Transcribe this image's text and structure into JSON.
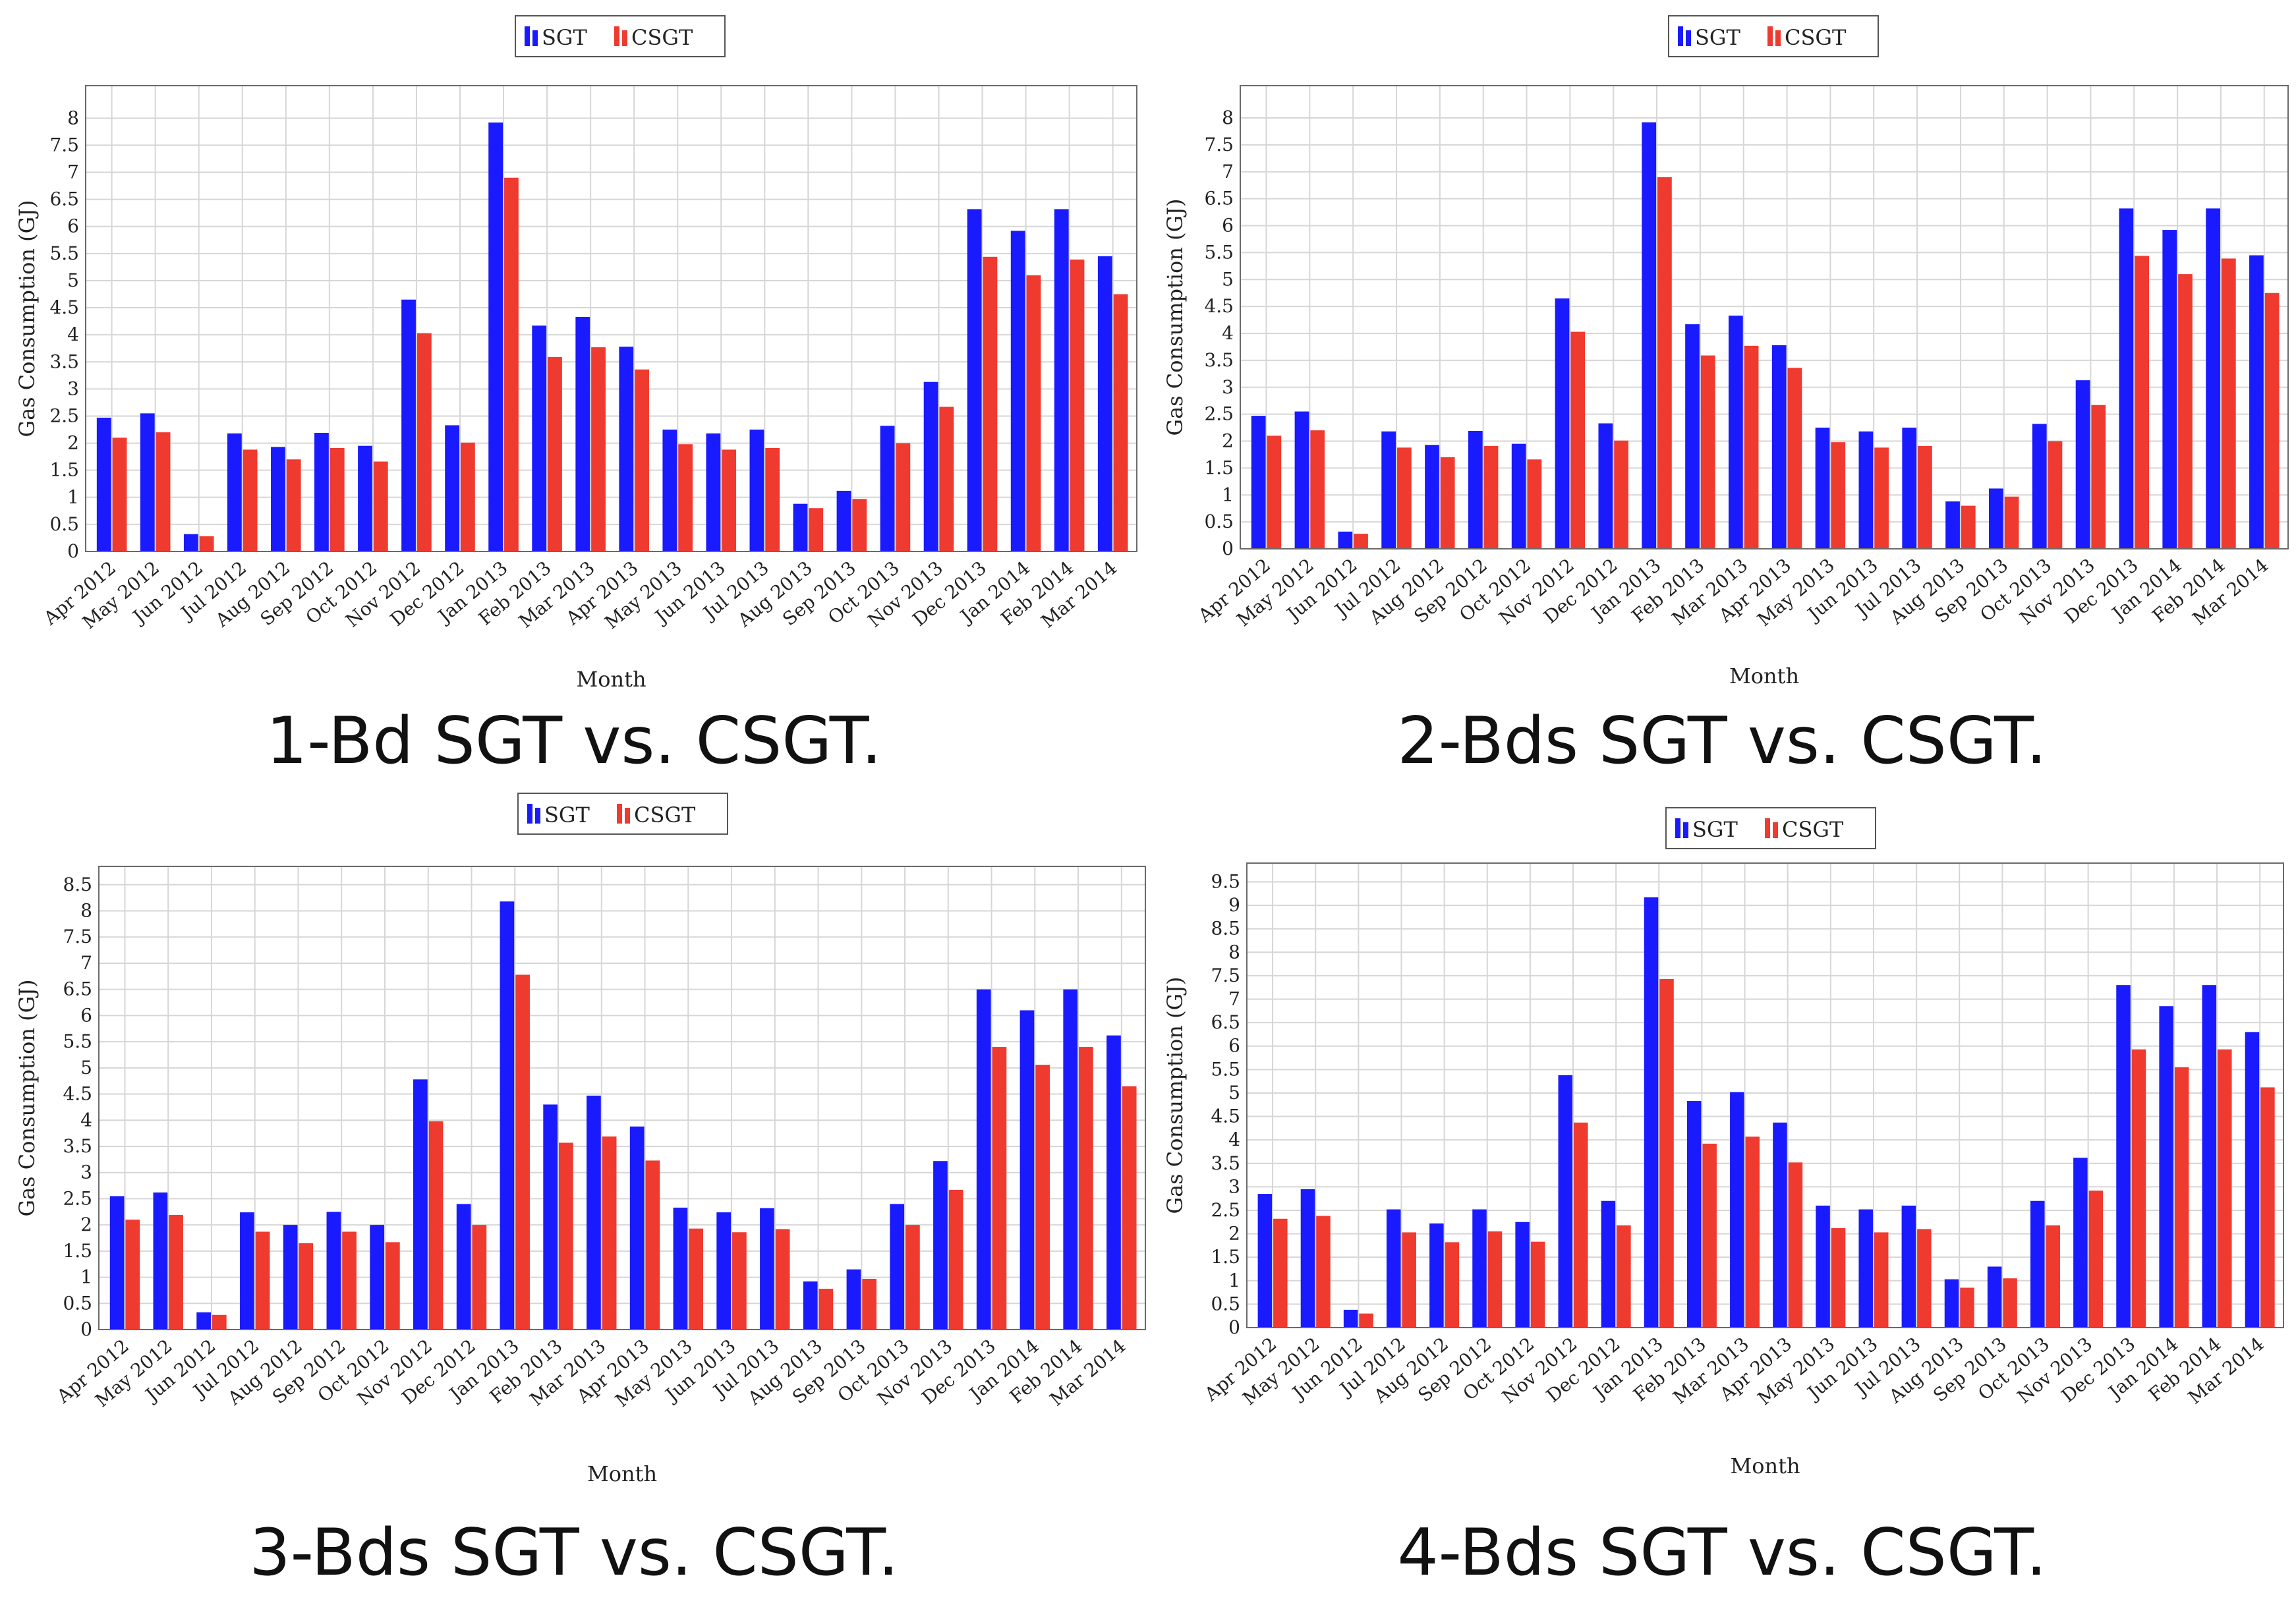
{
  "colors": {
    "sgt": "#1a1aff",
    "csgt": "#ef3a2f",
    "grid": "#d6d6d6",
    "axis": "#555555"
  },
  "legend": {
    "sgt": "SGT",
    "csgt": "CSGT"
  },
  "chart_data": [
    {
      "type": "bar",
      "caption": "1-Bd SGT vs. CSGT.",
      "xlabel": "Month",
      "ylabel": "Gas Consumption (GJ)",
      "ylim": [
        0,
        8.6
      ],
      "yticks": [
        "0",
        "0.5",
        "1",
        "1.5",
        "2",
        "2.5",
        "3",
        "3.5",
        "4",
        "4.5",
        "5",
        "5.5",
        "6",
        "6.5",
        "7",
        "7.5",
        "8"
      ],
      "categories": [
        "Apr 2012",
        "May 2012",
        "Jun 2012",
        "Jul 2012",
        "Aug 2012",
        "Sep 2012",
        "Oct 2012",
        "Nov 2012",
        "Dec 2012",
        "Jan 2013",
        "Feb 2013",
        "Mar 2013",
        "Apr 2013",
        "May 2013",
        "Jun 2013",
        "Jul 2013",
        "Aug 2013",
        "Sep 2013",
        "Oct 2013",
        "Nov 2013",
        "Dec 2013",
        "Jan 2014",
        "Feb 2014",
        "Mar 2014"
      ],
      "series": [
        {
          "name": "SGT",
          "values": [
            2.47,
            2.55,
            0.32,
            2.18,
            1.93,
            2.19,
            1.95,
            4.65,
            2.33,
            7.92,
            4.17,
            4.33,
            3.78,
            2.25,
            2.18,
            2.25,
            0.88,
            1.12,
            2.32,
            3.13,
            6.32,
            5.92,
            6.32,
            5.45
          ]
        },
        {
          "name": "CSGT",
          "values": [
            2.1,
            2.2,
            0.28,
            1.88,
            1.7,
            1.91,
            1.66,
            4.03,
            2.01,
            6.9,
            3.59,
            3.77,
            3.36,
            1.98,
            1.88,
            1.91,
            0.8,
            0.97,
            2.0,
            2.67,
            5.44,
            5.1,
            5.39,
            4.75
          ]
        }
      ]
    },
    {
      "type": "bar",
      "caption": "2-Bds SGT vs. CSGT.",
      "xlabel": "Month",
      "ylabel": "Gas Consumption (GJ)",
      "ylim": [
        0,
        8.6
      ],
      "yticks": [
        "0",
        "0.5",
        "1",
        "1.5",
        "2",
        "2.5",
        "3",
        "3.5",
        "4",
        "4.5",
        "5",
        "5.5",
        "6",
        "6.5",
        "7",
        "7.5",
        "8"
      ],
      "categories": [
        "Apr 2012",
        "May 2012",
        "Jun 2012",
        "Jul 2012",
        "Aug 2012",
        "Sep 2012",
        "Oct 2012",
        "Nov 2012",
        "Dec 2012",
        "Jan 2013",
        "Feb 2013",
        "Mar 2013",
        "Apr 2013",
        "May 2013",
        "Jun 2013",
        "Jul 2013",
        "Aug 2013",
        "Sep 2013",
        "Oct 2013",
        "Nov 2013",
        "Dec 2013",
        "Jan 2014",
        "Feb 2014",
        "Mar 2014"
      ],
      "series": [
        {
          "name": "SGT",
          "values": [
            2.47,
            2.55,
            0.32,
            2.18,
            1.93,
            2.19,
            1.95,
            4.65,
            2.33,
            7.92,
            4.17,
            4.33,
            3.78,
            2.25,
            2.18,
            2.25,
            0.88,
            1.12,
            2.32,
            3.13,
            6.32,
            5.92,
            6.32,
            5.45
          ]
        },
        {
          "name": "CSGT",
          "values": [
            2.1,
            2.2,
            0.28,
            1.88,
            1.7,
            1.91,
            1.66,
            4.03,
            2.01,
            6.9,
            3.59,
            3.77,
            3.36,
            1.98,
            1.88,
            1.91,
            0.8,
            0.97,
            2.0,
            2.67,
            5.44,
            5.1,
            5.39,
            4.75
          ]
        }
      ]
    },
    {
      "type": "bar",
      "caption": "3-Bds SGT vs. CSGT.",
      "xlabel": "Month",
      "ylabel": "Gas Consumption (GJ)",
      "ylim": [
        0,
        8.85
      ],
      "yticks": [
        "0",
        "0.5",
        "1",
        "1.5",
        "2",
        "2.5",
        "3",
        "3.5",
        "4",
        "4.5",
        "5",
        "5.5",
        "6",
        "6.5",
        "7",
        "7.5",
        "8",
        "8.5"
      ],
      "categories": [
        "Apr 2012",
        "May 2012",
        "Jun 2012",
        "Jul 2012",
        "Aug 2012",
        "Sep 2012",
        "Oct 2012",
        "Nov 2012",
        "Dec 2012",
        "Jan 2013",
        "Feb 2013",
        "Mar 2013",
        "Apr 2013",
        "May 2013",
        "Jun 2013",
        "Jul 2013",
        "Aug 2013",
        "Sep 2013",
        "Oct 2013",
        "Nov 2013",
        "Dec 2013",
        "Jan 2014",
        "Feb 2014",
        "Mar 2014"
      ],
      "series": [
        {
          "name": "SGT",
          "values": [
            2.55,
            2.62,
            0.33,
            2.24,
            2.0,
            2.25,
            2.0,
            4.78,
            2.4,
            8.18,
            4.3,
            4.47,
            3.88,
            2.33,
            2.24,
            2.32,
            0.92,
            1.15,
            2.4,
            3.22,
            6.5,
            6.1,
            6.5,
            5.62
          ]
        },
        {
          "name": "CSGT",
          "values": [
            2.1,
            2.19,
            0.28,
            1.87,
            1.65,
            1.87,
            1.67,
            3.98,
            2.0,
            6.78,
            3.57,
            3.69,
            3.23,
            1.93,
            1.86,
            1.92,
            0.78,
            0.97,
            2.0,
            2.67,
            5.4,
            5.06,
            5.4,
            4.65
          ]
        }
      ]
    },
    {
      "type": "bar",
      "caption": "4-Bds SGT vs. CSGT.",
      "xlabel": "Month",
      "ylabel": "Gas Consumption (GJ)",
      "ylim": [
        0,
        9.9
      ],
      "yticks": [
        "0",
        "0.5",
        "1",
        "1.5",
        "2",
        "2.5",
        "3",
        "3.5",
        "4",
        "4.5",
        "5",
        "5.5",
        "6",
        "6.5",
        "7",
        "7.5",
        "8",
        "8.5",
        "9",
        "9.5"
      ],
      "categories": [
        "Apr 2012",
        "May 2012",
        "Jun 2012",
        "Jul 2012",
        "Aug 2012",
        "Sep 2012",
        "Oct 2012",
        "Nov 2012",
        "Dec 2012",
        "Jan 2013",
        "Feb 2013",
        "Mar 2013",
        "Apr 2013",
        "May 2013",
        "Jun 2013",
        "Jul 2013",
        "Aug 2013",
        "Sep 2013",
        "Oct 2013",
        "Nov 2013",
        "Dec 2013",
        "Jan 2014",
        "Feb 2014",
        "Mar 2014"
      ],
      "series": [
        {
          "name": "SGT",
          "values": [
            2.85,
            2.95,
            0.38,
            2.52,
            2.22,
            2.52,
            2.25,
            5.38,
            2.7,
            9.17,
            4.83,
            5.02,
            4.37,
            2.6,
            2.52,
            2.6,
            1.03,
            1.3,
            2.7,
            3.62,
            7.3,
            6.85,
            7.3,
            6.3
          ]
        },
        {
          "name": "CSGT",
          "values": [
            2.32,
            2.38,
            0.3,
            2.03,
            1.82,
            2.05,
            1.83,
            4.37,
            2.18,
            7.43,
            3.92,
            4.07,
            3.52,
            2.12,
            2.03,
            2.1,
            0.85,
            1.05,
            2.18,
            2.92,
            5.93,
            5.55,
            5.93,
            5.12
          ]
        }
      ]
    }
  ]
}
